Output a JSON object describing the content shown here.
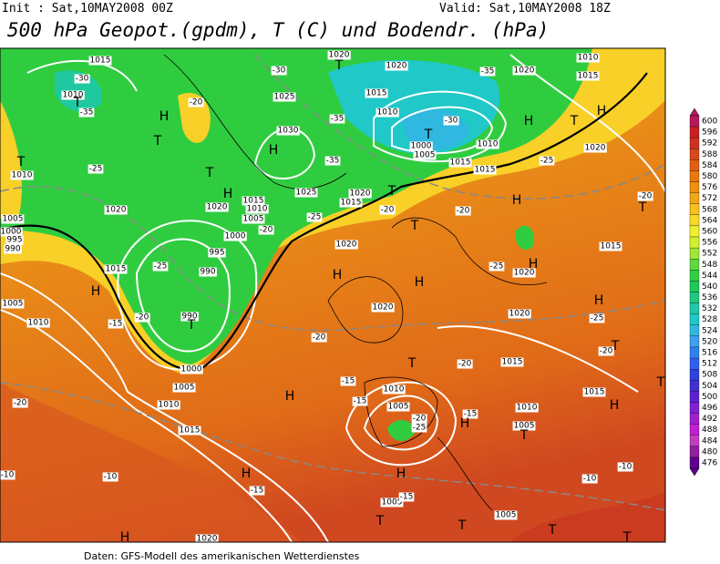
{
  "header": {
    "init": "Init : Sat,10MAY2008 00Z",
    "valid": "Valid: Sat,10MAY2008 18Z",
    "title": "500 hPa Geopot.(gpdm), T (C) und Bodendr. (hPa)"
  },
  "colorbar": {
    "levels": [
      600,
      596,
      592,
      588,
      584,
      580,
      576,
      572,
      568,
      564,
      560,
      556,
      552,
      548,
      544,
      540,
      536,
      532,
      528,
      524,
      520,
      516,
      512,
      508,
      504,
      500,
      496,
      492,
      488,
      484,
      480,
      476
    ],
    "colors": [
      "#b81860",
      "#c82020",
      "#d03020",
      "#d84818",
      "#e06010",
      "#e87810",
      "#f09010",
      "#f0a818",
      "#f8c020",
      "#f8d828",
      "#f0f030",
      "#d0f030",
      "#a0e838",
      "#60d840",
      "#30d040",
      "#20c858",
      "#20c880",
      "#20c8a8",
      "#20c8c8",
      "#30b8e0",
      "#40a0f0",
      "#3080f0",
      "#3060f0",
      "#3040e0",
      "#4030d0",
      "#6020d0",
      "#8020d0",
      "#a020d0",
      "#c020d0",
      "#c040c0",
      "#9020a0",
      "#600090"
    ]
  },
  "map": {
    "pressure_labels": [
      "1015",
      "1010",
      "1020",
      "1020",
      "1020",
      "1010",
      "1015",
      "1025",
      "1030",
      "1015",
      "1010",
      "1000",
      "1005",
      "1010",
      "1015",
      "1015",
      "1020",
      "1010",
      "1020",
      "1015",
      "1010",
      "1005",
      "1000",
      "995",
      "990",
      "1020",
      "1005",
      "1000",
      "995",
      "990",
      "1015",
      "1005",
      "1010",
      "990",
      "1000",
      "1005",
      "1010",
      "1015",
      "1020",
      "1020",
      "1020",
      "1015",
      "1010",
      "1005",
      "1010",
      "1005",
      "1015",
      "1015",
      "1020",
      "1005",
      "1005",
      "1020",
      "1025",
      "1020",
      "1015"
    ],
    "temperature_labels": [
      "-30",
      "-30",
      "-35",
      "-20",
      "-25",
      "-35",
      "-35",
      "-30",
      "-35",
      "-25",
      "-20",
      "-25",
      "-25",
      "-20",
      "-20",
      "-20",
      "-25",
      "-20",
      "-25",
      "-20",
      "-15",
      "-20",
      "-20",
      "-15",
      "-15",
      "-15",
      "-20",
      "-25",
      "-10",
      "-15",
      "-10",
      "-10",
      "-15",
      "-10",
      "-20"
    ],
    "highs": [
      "H",
      "H",
      "H",
      "H",
      "H",
      "H",
      "H",
      "H",
      "H",
      "H",
      "H",
      "H",
      "H",
      "H",
      "H",
      "H",
      "H"
    ],
    "lows": [
      "T",
      "T",
      "T",
      "T",
      "T",
      "T",
      "T",
      "T",
      "T",
      "T",
      "T",
      "T",
      "T",
      "T",
      "T",
      "T",
      "T",
      "T",
      "T"
    ]
  },
  "footer": "Daten: GFS-Modell des amerikanischen Wetterdienstes"
}
